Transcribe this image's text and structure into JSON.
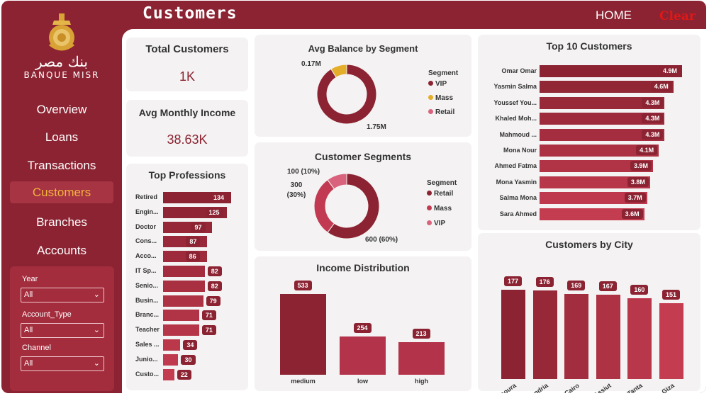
{
  "header": {
    "title": "Customers",
    "home": "HOME",
    "clear": "Clear"
  },
  "brand": {
    "arabic": "بنك مصر",
    "english": "BANQUE MISR"
  },
  "nav": [
    {
      "label": "Overview"
    },
    {
      "label": "Loans"
    },
    {
      "label": "Transactions"
    },
    {
      "label": "Customers",
      "active": true
    },
    {
      "label": "Branches"
    },
    {
      "label": "Accounts"
    }
  ],
  "filters": [
    {
      "label": "Year",
      "value": "All"
    },
    {
      "label": "Account_Type",
      "value": "All"
    },
    {
      "label": "Channel",
      "value": "All"
    }
  ],
  "kpis": {
    "total_customers": {
      "title": "Total Customers",
      "value": "1K"
    },
    "avg_income": {
      "title": "Avg Monthly Income",
      "value": "38.63K"
    }
  },
  "colors": {
    "primary": "#8b2332",
    "mid": "#b3344a",
    "light": "#d9637c",
    "gold": "#e4ae2b"
  },
  "chart_data": [
    {
      "type": "bar",
      "orientation": "horizontal",
      "title": "Top Professions",
      "categories": [
        "Retired",
        "Engin...",
        "Doctor",
        "Cons...",
        "Acco...",
        "IT Sp...",
        "Senio...",
        "Busin...",
        "Branc...",
        "Teacher",
        "Sales ...",
        "Junio...",
        "Custo..."
      ],
      "values": [
        134,
        125,
        97,
        87,
        86,
        82,
        82,
        79,
        71,
        71,
        34,
        30,
        22
      ],
      "labels": [
        "134",
        "125",
        "97",
        "87",
        "86",
        "82",
        "82",
        "79",
        "71",
        "71",
        "34",
        "30",
        "22"
      ]
    },
    {
      "type": "pie",
      "donut": true,
      "title": "Avg Balance by Segment",
      "legend_title": "Segment",
      "categories": [
        "VIP",
        "Mass",
        "Retail"
      ],
      "values": [
        1.75,
        0.17,
        0
      ],
      "labels": [
        "1.75M",
        "0.17M",
        ""
      ],
      "colors": [
        "#8b2332",
        "#e4ae2b",
        "#d9637c"
      ]
    },
    {
      "type": "pie",
      "donut": true,
      "title": "Customer Segments",
      "legend_title": "Segment",
      "categories": [
        "Retail",
        "Mass",
        "VIP"
      ],
      "values": [
        600,
        300,
        100
      ],
      "labels": [
        "600 (60%)",
        "300 (30%)",
        "100 (10%)"
      ],
      "colors": [
        "#8b2332",
        "#c23a52",
        "#d9637c"
      ]
    },
    {
      "type": "bar",
      "title": "Income Distribution",
      "categories": [
        "medium",
        "low",
        "high"
      ],
      "values": [
        533,
        254,
        213
      ],
      "labels": [
        "533",
        "254",
        "213"
      ]
    },
    {
      "type": "bar",
      "orientation": "horizontal",
      "title": "Top 10 Customers",
      "categories": [
        "Omar Omar",
        "Yasmin Salma",
        "Youssef You...",
        "Khaled Moh...",
        "Mahmoud ...",
        "Mona Nour",
        "Ahmed Fatma",
        "Mona Yasmin",
        "Salma Mona",
        "Sara Ahmed"
      ],
      "values": [
        4.9,
        4.6,
        4.3,
        4.3,
        4.3,
        4.1,
        3.9,
        3.8,
        3.7,
        3.6
      ],
      "labels": [
        "4.9M",
        "4.6M",
        "4.3M",
        "4.3M",
        "4.3M",
        "4.1M",
        "3.9M",
        "3.8M",
        "3.7M",
        "3.6M"
      ]
    },
    {
      "type": "bar",
      "title": "Customers by City",
      "categories": [
        "Mansoura",
        "Alexandria",
        "Cairo",
        "Assiut",
        "Tanta",
        "Giza"
      ],
      "values": [
        177,
        176,
        169,
        167,
        160,
        151
      ],
      "labels": [
        "177",
        "176",
        "169",
        "167",
        "160",
        "151"
      ]
    }
  ]
}
